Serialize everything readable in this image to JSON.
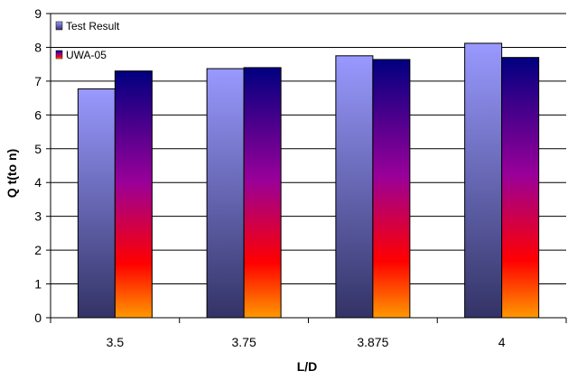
{
  "chart_data": {
    "type": "bar",
    "title": "",
    "xlabel": "L/D",
    "ylabel": "Q t(to n)",
    "categories": [
      "3.5",
      "3.75",
      "3.875",
      "4"
    ],
    "series": [
      {
        "name": "Test Result",
        "values": [
          6.77,
          7.37,
          7.75,
          8.12
        ]
      },
      {
        "name": "UWA-05",
        "values": [
          7.3,
          7.4,
          7.64,
          7.7
        ]
      }
    ],
    "ylim": [
      0,
      9
    ],
    "yticks": [
      0,
      1,
      2,
      3,
      4,
      5,
      6,
      7,
      8,
      9
    ],
    "grid": true,
    "legend_position": "top-left",
    "colors": {
      "test_result_top": "#9999FF",
      "test_result_bottom": "#333366",
      "uwa_top": "#000080",
      "uwa_mid": "#CC0066",
      "uwa_low": "#FF0000",
      "uwa_bottom": "#FF9900",
      "grid": "#000000"
    }
  }
}
